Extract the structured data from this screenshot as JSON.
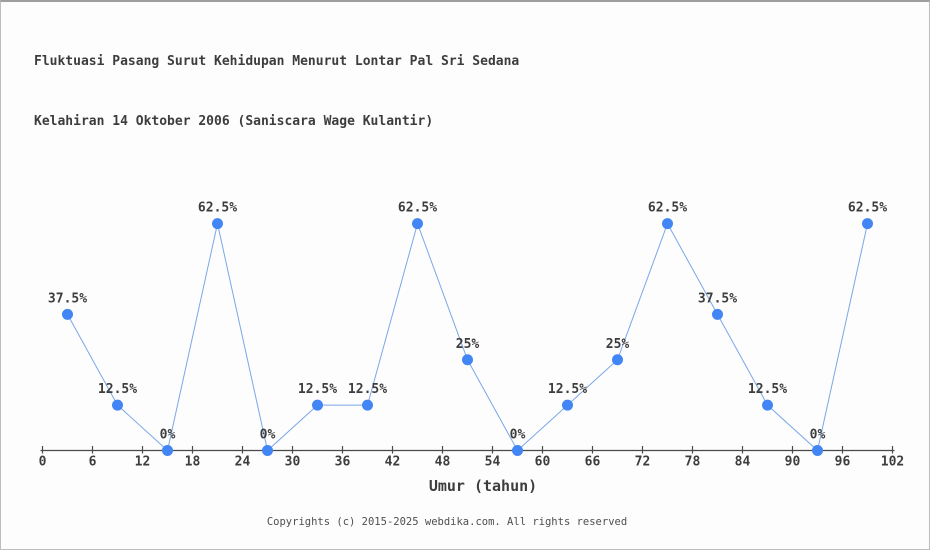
{
  "title": {
    "line1": "Fluktuasi Pasang Surut Kehidupan Menurut Lontar Pal Sri Sedana",
    "line2": "Kelahiran 14 Oktober 2006 (Saniscara Wage Kulantir)"
  },
  "footer": {
    "text": "Copyrights (c) 2015-2025 webdika.com. All rights reserved"
  },
  "chart_data": {
    "type": "line",
    "title": "Fluktuasi Pasang Surut Kehidupan Menurut Lontar Pal Sri Sedana Kelahiran 14 Oktober 2006 (Saniscara Wage Kulantir)",
    "xlabel": "Umur (tahun)",
    "ylabel": "",
    "x": [
      3,
      9,
      15,
      21,
      27,
      33,
      39,
      45,
      51,
      57,
      63,
      69,
      75,
      81,
      87,
      93,
      99
    ],
    "values": [
      37.5,
      12.5,
      0,
      62.5,
      0,
      12.5,
      12.5,
      62.5,
      25,
      0,
      12.5,
      25,
      62.5,
      37.5,
      12.5,
      0,
      62.5
    ],
    "point_labels": [
      "37.5%",
      "12.5%",
      "0%",
      "62.5%",
      "0%",
      "12.5%",
      "12.5%",
      "62.5%",
      "25%",
      "0%",
      "12.5%",
      "25%",
      "62.5%",
      "37.5%",
      "12.5%",
      "0%",
      "62.5%"
    ],
    "x_ticks": [
      0,
      6,
      12,
      18,
      24,
      30,
      36,
      42,
      48,
      54,
      60,
      66,
      72,
      78,
      84,
      90,
      96,
      102
    ],
    "xlim": [
      0,
      102
    ],
    "ylim": [
      0,
      100
    ],
    "grid": false,
    "legend": null,
    "colors": {
      "line": "#7aa7e8",
      "marker": "#4285f4",
      "axis": "#4a4a4a",
      "text": "#3d3d3d"
    }
  }
}
